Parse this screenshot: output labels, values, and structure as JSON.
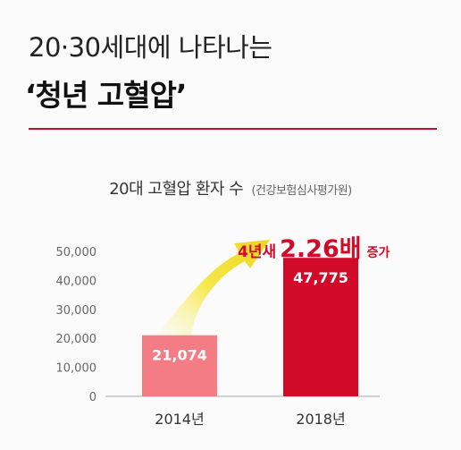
{
  "header": {
    "line1": "20·30세대에 나타나는",
    "line2": "‘청년 고혈압’"
  },
  "colors": {
    "accent": "#c8102e",
    "bar_2014": "#f47c85",
    "bar_2018": "#d10a2a",
    "arrow": "#f5e84a"
  },
  "chart_data": {
    "type": "bar",
    "title": "20대 고혈압 환자 수",
    "source": "(건강보험심사평가원)",
    "categories": [
      "2014년",
      "2018년"
    ],
    "values": [
      21074,
      47775
    ],
    "value_labels": [
      "21,074",
      "47,775"
    ],
    "ylim": [
      0,
      50000
    ],
    "yticks": [
      0,
      10000,
      20000,
      30000,
      40000,
      50000
    ],
    "ytick_labels": [
      "0",
      "10,000",
      "20,000",
      "30,000",
      "40,000",
      "50,000"
    ],
    "xlabel": "",
    "ylabel": "",
    "grid": false,
    "annotation": {
      "pre": "4년새",
      "multiplier": "2.26배",
      "post": "증가"
    }
  }
}
